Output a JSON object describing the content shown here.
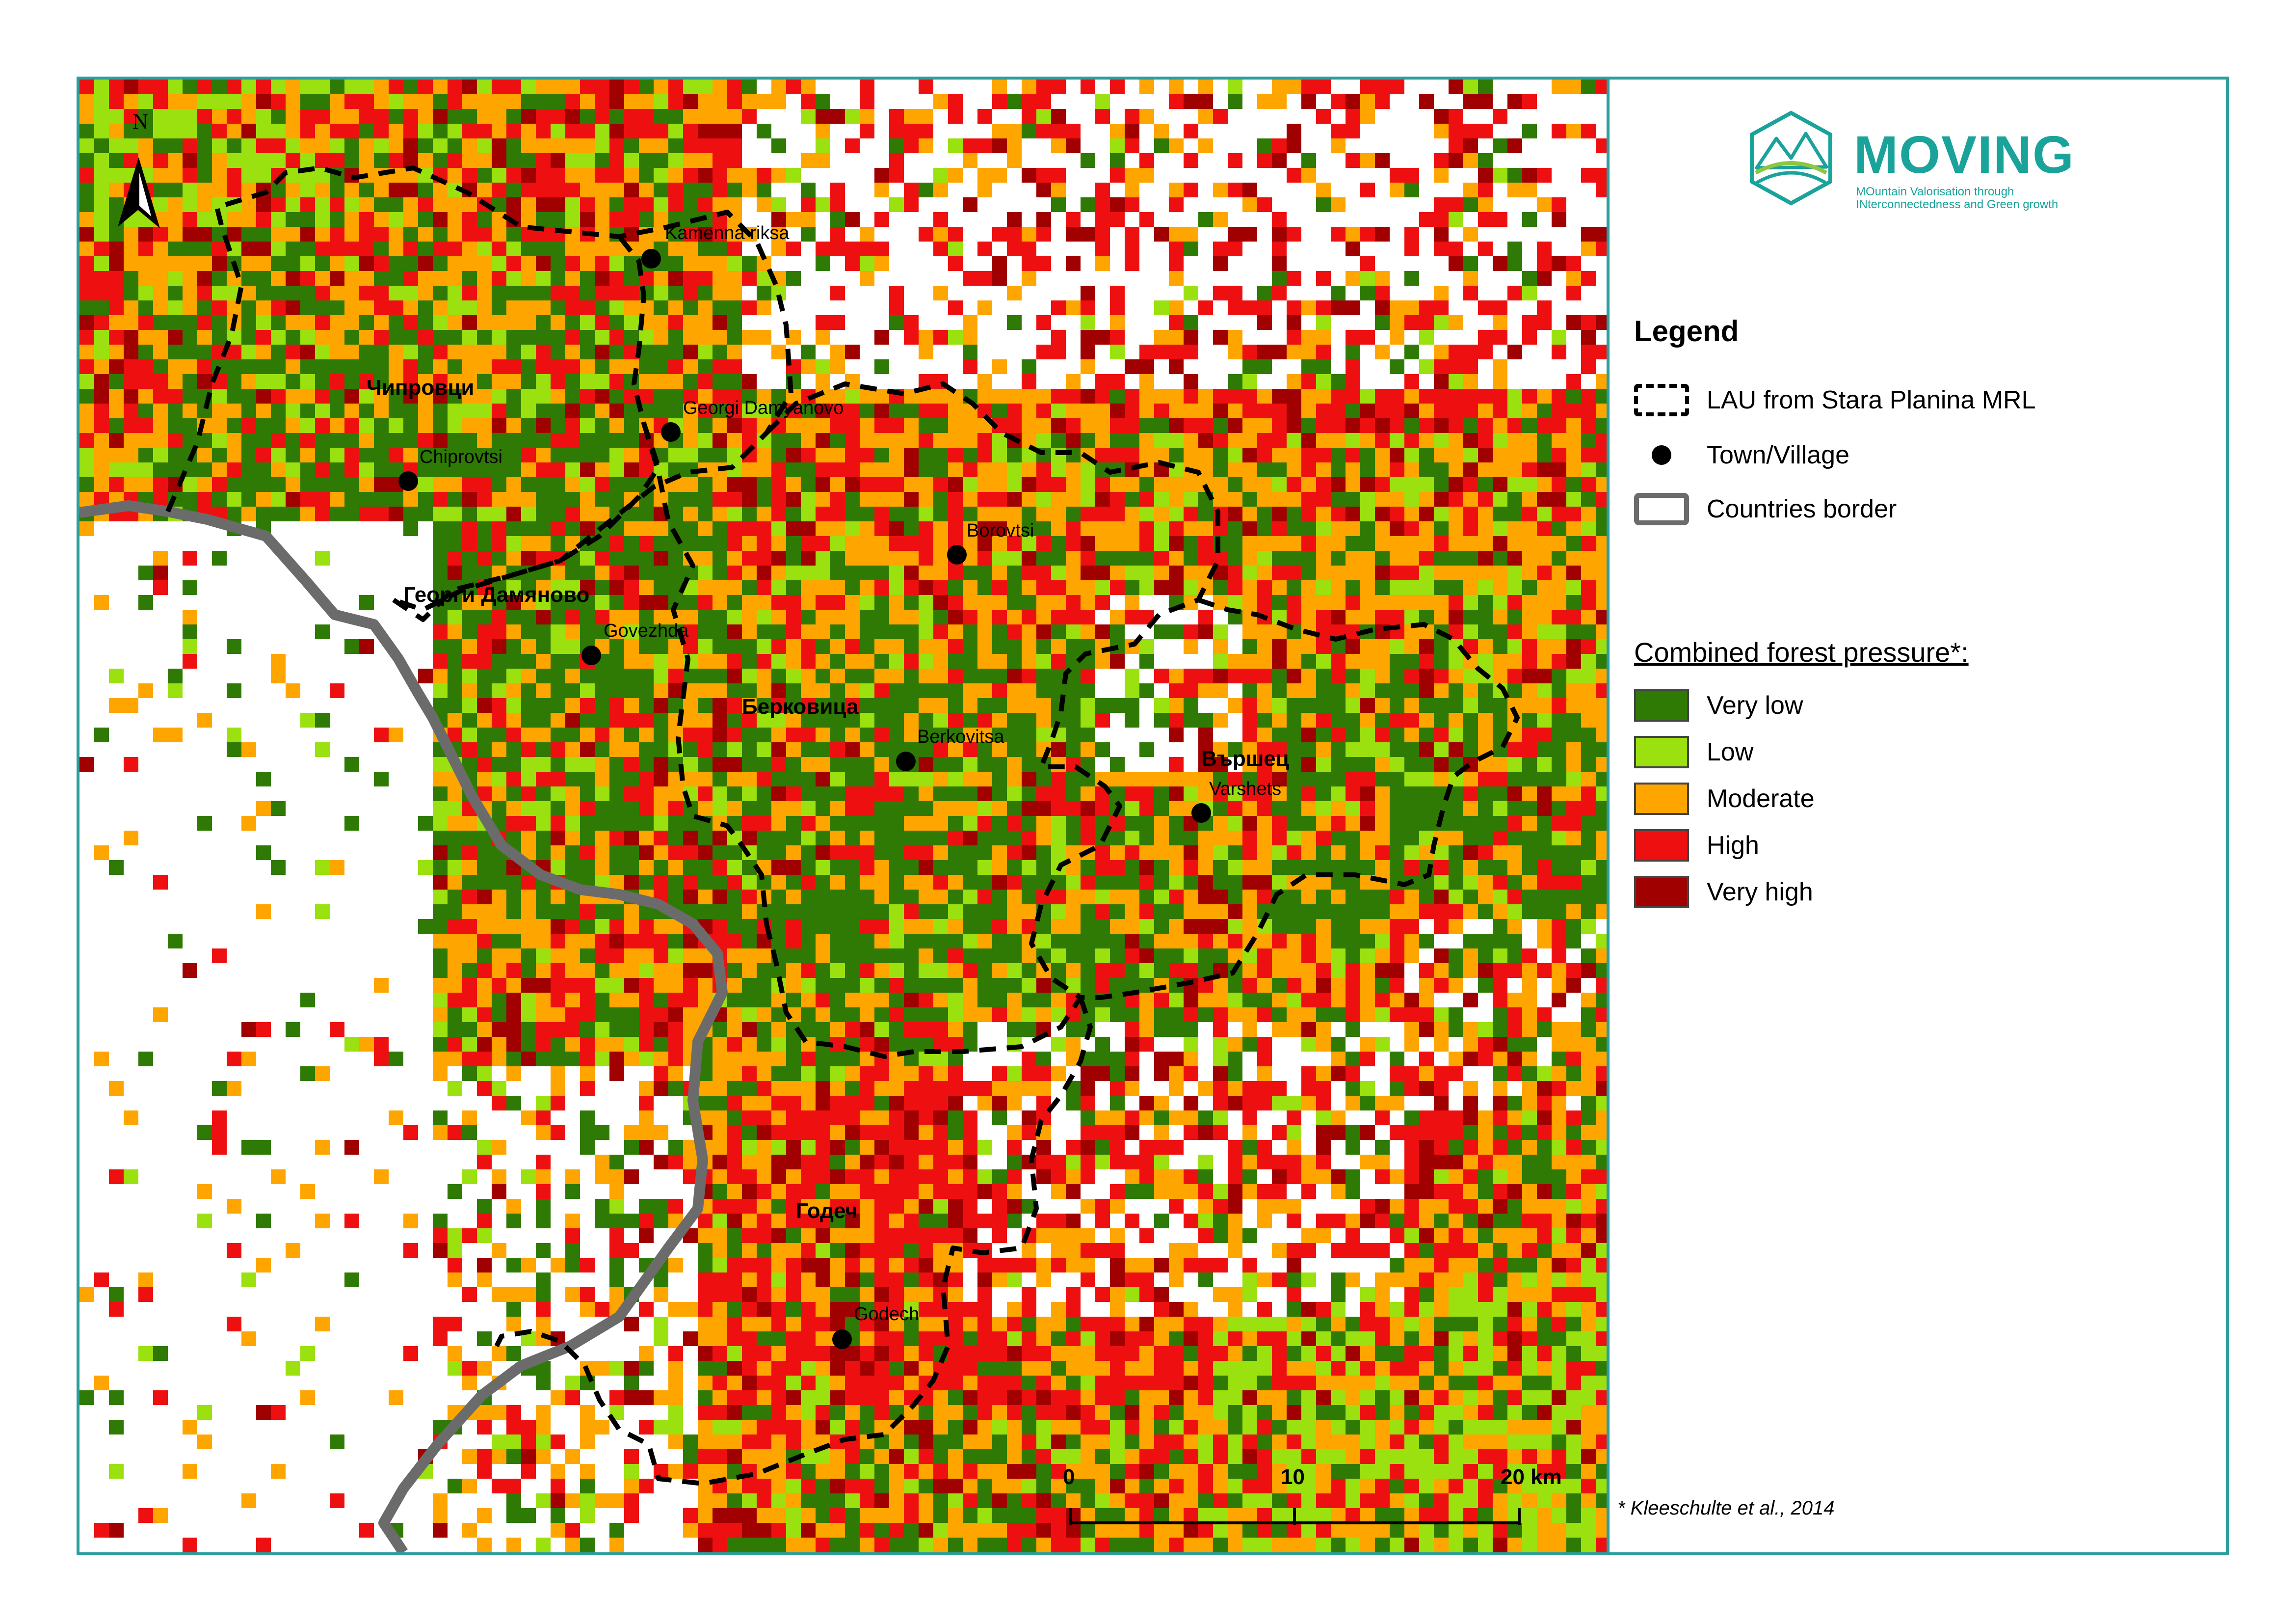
{
  "map": {
    "north_label": "N",
    "colors": {
      "very_low": "#2e7a04",
      "low": "#9be00f",
      "moderate": "#ffa500",
      "high": "#ee1010",
      "very_high": "#a00000",
      "lau_border": "#000000",
      "country_border": "#6b6b6b",
      "frame": "#2a9d9c"
    },
    "places": [
      {
        "name": "Kamenna riksa",
        "type": "town"
      },
      {
        "name": "Georgi Damyanovo",
        "type": "town"
      },
      {
        "name": "Chiprovtsi",
        "type": "town"
      },
      {
        "name": "Borovtsi",
        "type": "town"
      },
      {
        "name": "Govezhda",
        "type": "town"
      },
      {
        "name": "Berkovitsa",
        "type": "town"
      },
      {
        "name": "Varshets",
        "type": "town"
      },
      {
        "name": "Godech",
        "type": "town"
      }
    ],
    "lau_names": [
      "Чипровци",
      "Георги Дамяново",
      "Берковица",
      "Вършец",
      "Годеч"
    ],
    "scale_bar": {
      "ticks": [
        "0",
        "10",
        "20 km"
      ]
    }
  },
  "logo": {
    "word": "MOVING",
    "tagline_line1": "MOuntain Valorisation through",
    "tagline_line2": "INterconnectedness and Green growth",
    "icon": "mountain-hexagon-icon"
  },
  "legend": {
    "title": "Legend",
    "items": [
      {
        "label": "LAU from Stara Planina MRL",
        "symbol": "dashed-outline"
      },
      {
        "label": "Town/Village",
        "symbol": "dot"
      },
      {
        "label": "Countries border",
        "symbol": "grey-outline"
      }
    ],
    "pressure_title": "Combined forest pressure*:",
    "pressure_classes": [
      {
        "label": "Very low",
        "color": "#2e7a04"
      },
      {
        "label": "Low",
        "color": "#9be00f"
      },
      {
        "label": "Moderate",
        "color": "#ffa500"
      },
      {
        "label": "High",
        "color": "#ee1010"
      },
      {
        "label": "Very high",
        "color": "#a00000"
      }
    ]
  },
  "citation": "* Kleeschulte et al., 2014"
}
